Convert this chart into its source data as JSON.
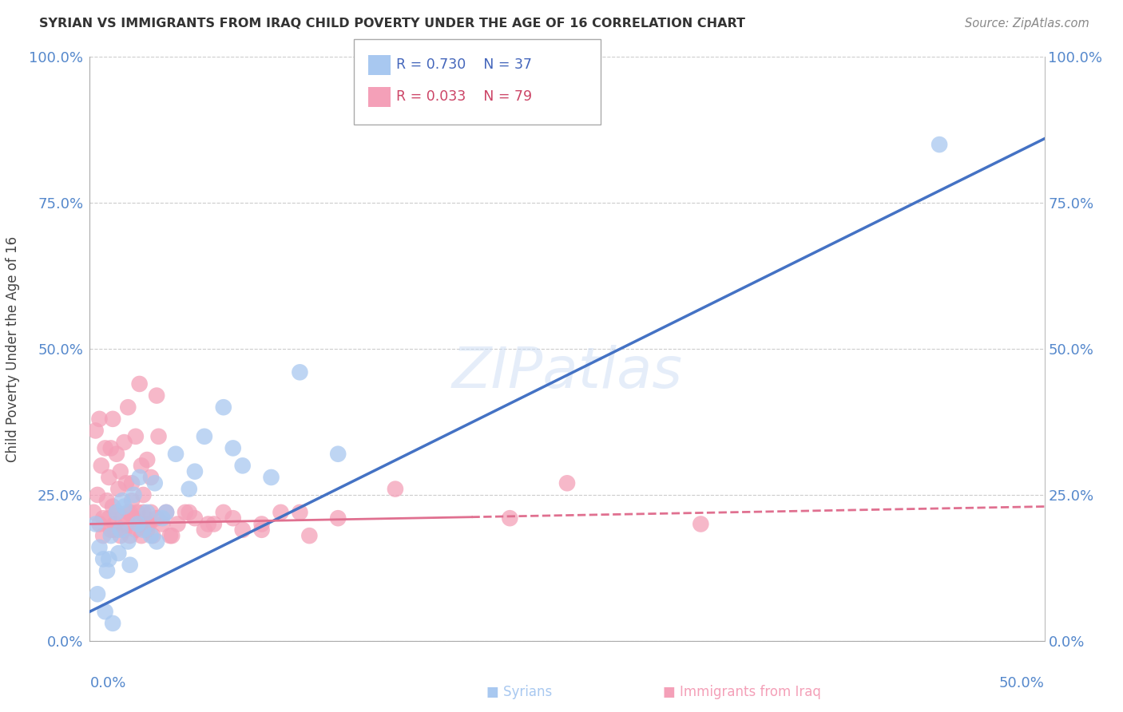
{
  "title": "SYRIAN VS IMMIGRANTS FROM IRAQ CHILD POVERTY UNDER THE AGE OF 16 CORRELATION CHART",
  "source": "Source: ZipAtlas.com",
  "ylabel": "Child Poverty Under the Age of 16",
  "yticks": [
    "0.0%",
    "25.0%",
    "50.0%",
    "75.0%",
    "100.0%"
  ],
  "ytick_vals": [
    0,
    25,
    50,
    75,
    100
  ],
  "xlim": [
    0,
    50
  ],
  "ylim": [
    0,
    100
  ],
  "watermark": "ZIPatlas",
  "legend_r1": "R = 0.730",
  "legend_n1": "N = 37",
  "legend_r2": "R = 0.033",
  "legend_n2": "N = 79",
  "syrians_color": "#a8c8f0",
  "iraq_color": "#f4a0b8",
  "line_blue": "#4472c4",
  "line_pink": "#e07090",
  "syr_line_x0": 0,
  "syr_line_y0": 5,
  "syr_line_x1": 50,
  "syr_line_y1": 86,
  "iraq_line_x0": 0,
  "iraq_line_y0": 20,
  "iraq_line_x1": 50,
  "iraq_line_y1": 23,
  "syrians_x": [
    0.3,
    0.5,
    0.7,
    0.9,
    1.1,
    1.4,
    1.6,
    1.8,
    2.0,
    2.3,
    2.6,
    3.0,
    3.4,
    3.8,
    4.5,
    5.2,
    6.0,
    7.0,
    8.0,
    9.5,
    11.0,
    13.0,
    0.4,
    0.8,
    1.2,
    1.5,
    2.1,
    2.8,
    3.5,
    4.0,
    1.0,
    1.7,
    2.5,
    3.2,
    44.5,
    5.5,
    7.5
  ],
  "syrians_y": [
    20,
    16,
    14,
    12,
    18,
    22,
    19,
    23,
    17,
    25,
    28,
    22,
    27,
    21,
    32,
    26,
    35,
    40,
    30,
    28,
    46,
    32,
    8,
    5,
    3,
    15,
    13,
    19,
    17,
    22,
    14,
    24,
    20,
    18,
    85,
    29,
    33
  ],
  "iraq_x": [
    0.2,
    0.4,
    0.5,
    0.7,
    0.9,
    1.0,
    1.1,
    1.2,
    1.3,
    1.4,
    1.5,
    1.6,
    1.7,
    1.8,
    1.9,
    2.0,
    2.1,
    2.2,
    2.3,
    2.4,
    2.5,
    2.6,
    2.7,
    2.8,
    2.9,
    3.0,
    3.1,
    3.2,
    3.3,
    3.5,
    3.8,
    4.0,
    4.3,
    4.6,
    5.0,
    5.5,
    6.0,
    6.5,
    7.0,
    8.0,
    9.0,
    10.0,
    11.5,
    13.0,
    0.3,
    0.6,
    0.8,
    1.0,
    1.2,
    1.4,
    1.6,
    1.8,
    2.0,
    2.2,
    2.4,
    2.6,
    2.8,
    3.0,
    3.2,
    3.5,
    0.5,
    1.1,
    1.9,
    2.7,
    3.6,
    0.7,
    1.3,
    2.1,
    3.0,
    4.2,
    5.2,
    6.2,
    7.5,
    9.0,
    11.0,
    22.0,
    32.0,
    25.0,
    16.0
  ],
  "iraq_y": [
    22,
    25,
    20,
    18,
    24,
    21,
    19,
    23,
    20,
    22,
    26,
    18,
    21,
    19,
    20,
    22,
    18,
    24,
    21,
    19,
    22,
    20,
    18,
    22,
    21,
    19,
    20,
    22,
    18,
    21,
    20,
    22,
    18,
    20,
    22,
    21,
    19,
    20,
    22,
    19,
    20,
    22,
    18,
    21,
    36,
    30,
    33,
    28,
    38,
    32,
    29,
    34,
    40,
    27,
    35,
    44,
    25,
    31,
    28,
    42,
    38,
    33,
    27,
    30,
    35,
    21,
    19,
    22,
    20,
    18,
    22,
    20,
    21,
    19,
    22,
    21,
    20,
    27,
    26
  ]
}
